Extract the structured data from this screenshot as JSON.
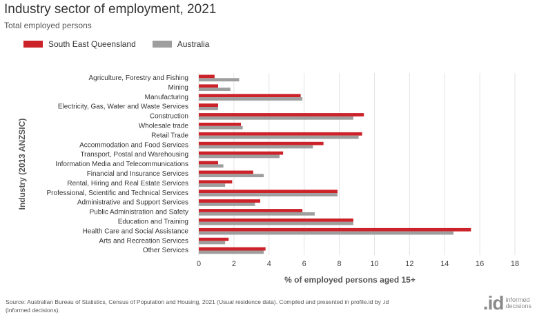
{
  "chart_data": {
    "type": "bar",
    "orientation": "horizontal",
    "title": "Industry sector of employment, 2021",
    "subtitle": "Total employed persons",
    "xlabel": "% of employed persons aged 15+",
    "ylabel": "Industry (2013 ANZSIC)",
    "xlim": [
      0,
      18
    ],
    "xticks": [
      0,
      2,
      4,
      6,
      8,
      10,
      12,
      14,
      16,
      18
    ],
    "grid": true,
    "legend_position": "top-left",
    "categories": [
      "Agriculture, Forestry and Fishing",
      "Mining",
      "Manufacturing",
      "Electricity, Gas, Water and Waste Services",
      "Construction",
      "Wholesale trade",
      "Retail Trade",
      "Accommodation and Food Services",
      "Transport, Postal and Warehousing",
      "Information Media and Telecommunications",
      "Financial and Insurance Services",
      "Rental, Hiring and Real Estate Services",
      "Professional, Scientific and Technical Services",
      "Administrative and Support Services",
      "Public Administration and Safety",
      "Education and Training",
      "Health Care and Social Assistance",
      "Arts and Recreation Services",
      "Other Services"
    ],
    "series": [
      {
        "name": "South East Queensland",
        "color": "#cc2229",
        "values": [
          0.9,
          1.1,
          5.8,
          1.1,
          9.4,
          2.4,
          9.3,
          7.1,
          4.8,
          1.1,
          3.1,
          1.9,
          7.9,
          3.5,
          5.9,
          8.8,
          15.5,
          1.7,
          3.8
        ]
      },
      {
        "name": "Australia",
        "color": "#9e9e9e",
        "values": [
          2.3,
          1.8,
          5.9,
          1.1,
          8.8,
          2.5,
          9.1,
          6.5,
          4.6,
          1.4,
          3.7,
          1.5,
          7.9,
          3.2,
          6.6,
          8.8,
          14.5,
          1.5,
          3.7
        ]
      }
    ]
  },
  "footer": {
    "source": "Source: Australian Bureau of Statistics, Census of Population and Housing, 2021 (Usual residence data). Compiled and presented in profile.id by .id (informed decisions).",
    "logo_mark": ".id",
    "logo_line1": "informed",
    "logo_line2": "decisions"
  }
}
